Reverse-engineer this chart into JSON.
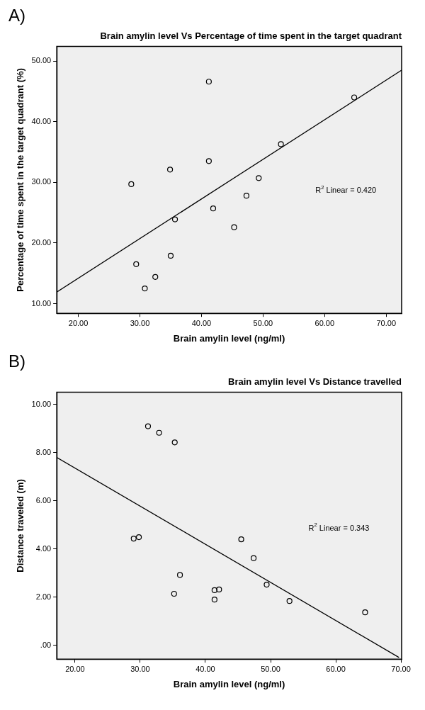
{
  "chart_data": [
    {
      "type": "scatter",
      "title": "Brain amylin level Vs Percentage of time spent in the target quadrant",
      "xlabel": "Brain amylin level (ng/ml)",
      "ylabel": "Percentage of time spent in the target quadrant (%)",
      "annotations": [
        "A)",
        "R$^{2}$ Linear = 0.420"
      ],
      "xlim": [
        16.5,
        72.5
      ],
      "ylim": [
        8.4,
        52.4
      ],
      "xticks": [
        {
          "value": 20,
          "label": "20.00"
        },
        {
          "value": 30,
          "label": "30.00"
        },
        {
          "value": 40,
          "label": "40.00"
        },
        {
          "value": 50,
          "label": "50.00"
        },
        {
          "value": 60,
          "label": "60.00"
        },
        {
          "value": 70,
          "label": "70.00"
        }
      ],
      "yticks": [
        {
          "value": 10,
          "label": "10.00"
        },
        {
          "value": 20,
          "label": "20.00"
        },
        {
          "value": 30,
          "label": "30.00"
        },
        {
          "value": 40,
          "label": "40.00"
        },
        {
          "value": 50,
          "label": "50.00"
        }
      ],
      "grid": false,
      "legend": false,
      "series": [
        {
          "type": "scatter",
          "color": "#000000",
          "marker": "circle",
          "x": [
            41.2,
            64.8,
            52.9,
            41.2,
            34.9,
            28.6,
            49.3,
            47.3,
            41.9,
            35.7,
            45.3,
            35.0,
            29.4,
            32.5,
            30.8
          ],
          "values": [
            46.6,
            44.0,
            36.3,
            33.5,
            32.1,
            29.7,
            30.7,
            27.8,
            25.7,
            23.9,
            22.6,
            17.9,
            16.5,
            14.4,
            12.5
          ]
        },
        {
          "type": "line",
          "color": "#000000",
          "marker": "none",
          "x": [
            16.5,
            72.5
          ],
          "values": [
            11.9,
            48.5
          ]
        }
      ]
    },
    {
      "type": "scatter",
      "title": "Brain amylin level Vs Distance travelled",
      "xlabel": "Brain amylin level (ng/ml)",
      "ylabel": "Distance traveled (m)",
      "annotations": [
        "B)",
        "R$^{2}$ Linear = 0.343"
      ],
      "xlim": [
        17.2,
        70.1
      ],
      "ylim": [
        -0.57,
        10.5
      ],
      "xticks": [
        {
          "value": 20,
          "label": "20.00"
        },
        {
          "value": 30,
          "label": "30.00"
        },
        {
          "value": 40,
          "label": "40.00"
        },
        {
          "value": 50,
          "label": "50.00"
        },
        {
          "value": 60,
          "label": "60.00"
        },
        {
          "value": 70,
          "label": "70.00"
        }
      ],
      "yticks": [
        {
          "value": 0,
          "label": ".00"
        },
        {
          "value": 2,
          "label": "2.00"
        },
        {
          "value": 4,
          "label": "4.00"
        },
        {
          "value": 6,
          "label": "6.00"
        },
        {
          "value": 8,
          "label": "8.00"
        },
        {
          "value": 10,
          "label": "10.00"
        }
      ],
      "grid": false,
      "legend": false,
      "series": [
        {
          "type": "scatter",
          "color": "#000000",
          "marker": "circle",
          "x": [
            31.2,
            32.9,
            35.3,
            29.0,
            29.8,
            45.5,
            47.4,
            36.1,
            35.2,
            41.4,
            42.1,
            41.4,
            49.4,
            52.9,
            64.5
          ],
          "values": [
            9.09,
            8.82,
            8.42,
            4.43,
            4.49,
            4.4,
            3.62,
            2.92,
            2.14,
            2.29,
            2.32,
            1.9,
            2.52,
            1.84,
            1.37
          ]
        },
        {
          "type": "line",
          "color": "#000000",
          "marker": "none",
          "x": [
            17.2,
            69.7
          ],
          "values": [
            7.8,
            -0.5
          ]
        }
      ]
    }
  ]
}
